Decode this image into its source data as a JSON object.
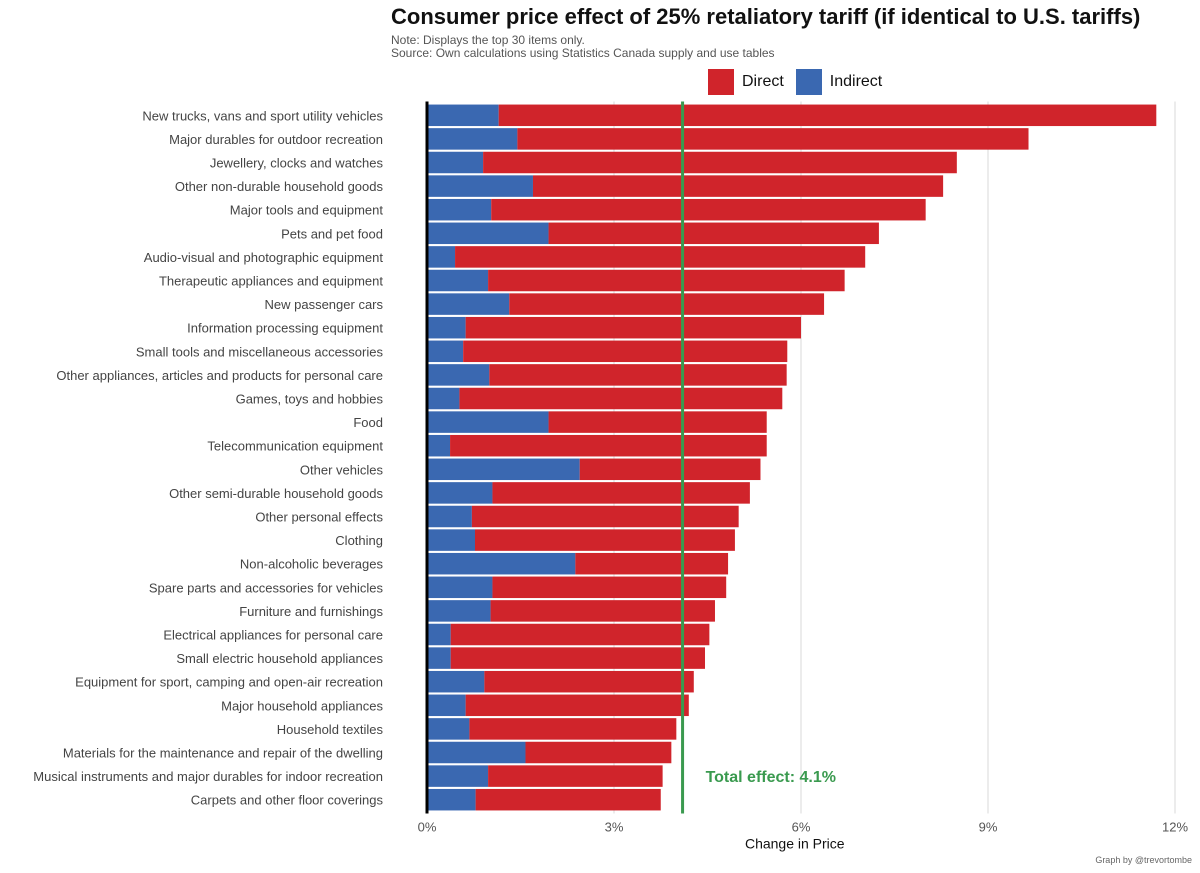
{
  "title": "Consumer price effect of 25% retaliatory tariff (if identical to U.S. tariffs)",
  "note_line1": "Note: Displays the top 30 items only.",
  "note_line2": "Source: Own calculations using Statistics Canada supply and use tables",
  "credit": "Graph by @trevortombe",
  "colors": {
    "direct": "#d0242b",
    "indirect": "#3a68b1",
    "total_line": "#3a9a4f"
  },
  "chart_data": {
    "type": "bar",
    "orientation": "horizontal",
    "stacked": true,
    "xlabel": "Change in Price",
    "xlim": [
      0,
      12
    ],
    "x_ticks": [
      0,
      3,
      6,
      9,
      12
    ],
    "x_tick_labels": [
      "0%",
      "3%",
      "6%",
      "9%",
      "12%"
    ],
    "legend": [
      "Direct",
      "Indirect"
    ],
    "legend_position": "top",
    "grid": "vertical",
    "total_effect": {
      "value": 4.1,
      "label": "Total effect:  4.1%"
    },
    "categories": [
      "New trucks, vans and sport utility vehicles",
      "Major durables for outdoor recreation",
      "Jewellery, clocks and watches",
      "Other non-durable household goods",
      "Major tools and equipment",
      "Pets and pet food",
      "Audio-visual and photographic equipment",
      "Therapeutic appliances and equipment",
      "New passenger cars",
      "Information processing equipment",
      "Small tools and miscellaneous accessories",
      "Other appliances, articles and products for personal care",
      "Games, toys and hobbies",
      "Food",
      "Telecommunication equipment",
      "Other vehicles",
      "Other semi-durable household goods",
      "Other personal effects",
      "Clothing",
      "Non-alcoholic beverages",
      "Spare parts and accessories for vehicles",
      "Furniture and furnishings",
      "Electrical appliances for personal care",
      "Small electric household appliances",
      "Equipment for sport, camping and open-air recreation",
      "Major household appliances",
      "Household textiles",
      "Materials for the maintenance and repair of the dwelling",
      "Musical instruments and major durables for indoor recreation",
      "Carpets and other floor coverings"
    ],
    "series": [
      {
        "name": "Indirect",
        "values": [
          1.15,
          1.45,
          0.9,
          1.7,
          1.03,
          1.95,
          0.45,
          0.98,
          1.32,
          0.62,
          0.58,
          1.0,
          0.52,
          1.95,
          0.37,
          2.45,
          1.05,
          0.72,
          0.77,
          2.38,
          1.05,
          1.02,
          0.38,
          0.38,
          0.92,
          0.62,
          0.68,
          1.58,
          0.98,
          0.78
        ]
      },
      {
        "name": "Direct",
        "values": [
          10.55,
          8.2,
          7.6,
          6.58,
          6.97,
          5.3,
          6.58,
          5.72,
          5.05,
          5.38,
          5.2,
          4.77,
          5.18,
          3.5,
          5.08,
          2.9,
          4.13,
          4.28,
          4.17,
          2.45,
          3.75,
          3.6,
          4.15,
          4.08,
          3.36,
          3.58,
          3.32,
          2.34,
          2.8,
          2.97
        ]
      }
    ]
  }
}
